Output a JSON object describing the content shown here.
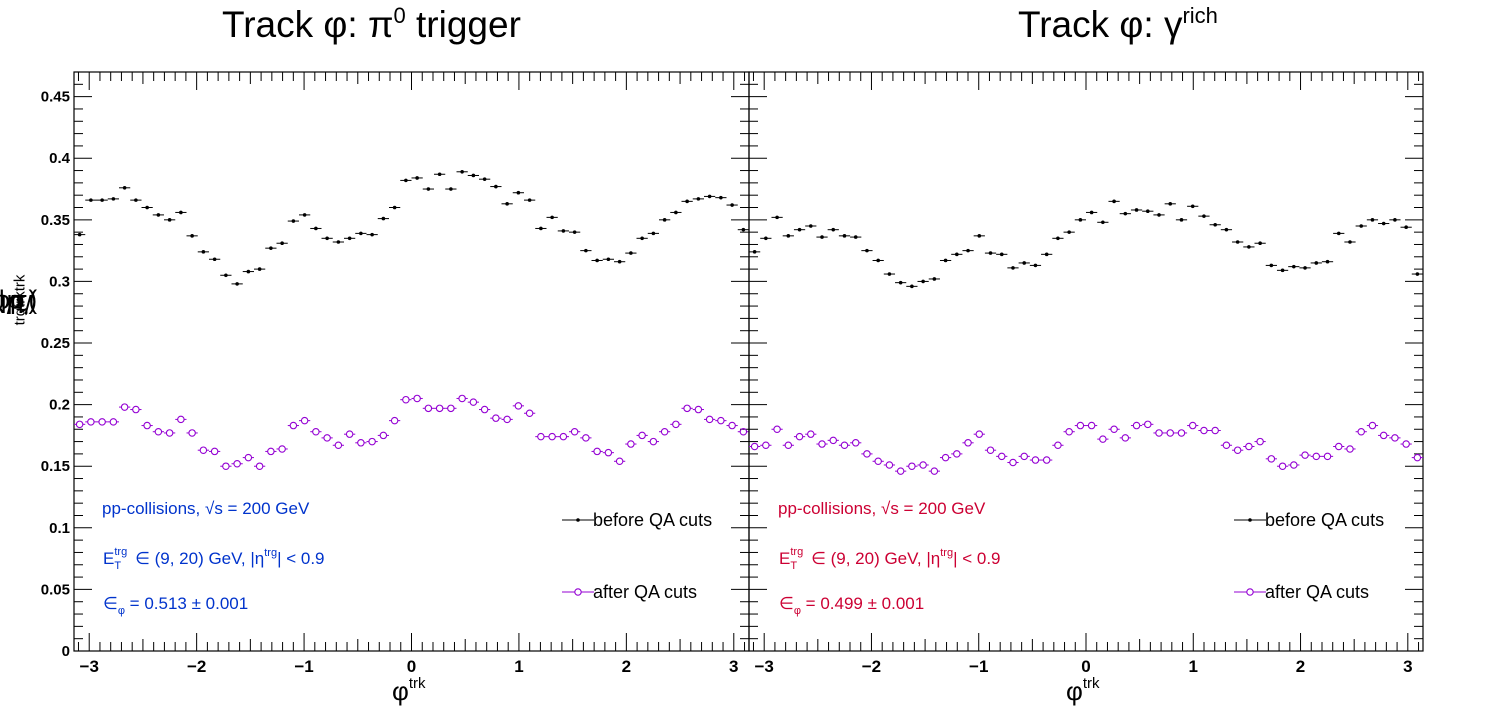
{
  "colors": {
    "before": "#000000",
    "after": "#9400d3",
    "info_left": "#0033cc",
    "info_right": "#cc0033"
  },
  "axes": {
    "ylabel_parts": [
      "(1/N",
      "trg",
      ") dN",
      "trk",
      "/dφ",
      "trk"
    ],
    "xlabel_parts": [
      "φ",
      "trk"
    ],
    "ylim": [
      0,
      0.47
    ],
    "xlim": [
      -3.1416,
      3.1416
    ],
    "yticks": [
      "0",
      "0.05",
      "0.1",
      "0.15",
      "0.2",
      "0.25",
      "0.3",
      "0.35",
      "0.4",
      "0.45"
    ],
    "xticks": [
      "−3",
      "−2",
      "−1",
      "0",
      "1",
      "2",
      "3"
    ]
  },
  "legend": {
    "before": "before QA cuts",
    "after": "after QA cuts"
  },
  "chart_data": [
    {
      "type": "scatter",
      "title_parts": [
        "Track φ: π",
        "0",
        " trigger"
      ],
      "info": {
        "line1_a": "pp-collisions,",
        "line1_b": "√s = 200 GeV",
        "line2_a": "E",
        "line2_sup": "trg",
        "line2_sub": "T",
        "line2_b": " ∈ (9, 20) GeV, |η",
        "line2_sup2": "trg",
        "line2_c": "| < 0.9",
        "line3_a": "∈",
        "line3_sub": "φ",
        "line3_b": " = 0.513 ± 0.001"
      },
      "xlabel": "φtrk",
      "ylim": [
        0,
        0.47
      ],
      "series": [
        {
          "name": "before QA cuts",
          "marker": "dot",
          "y": [
            0.338,
            0.366,
            0.366,
            0.367,
            0.376,
            0.366,
            0.36,
            0.354,
            0.35,
            0.356,
            0.337,
            0.324,
            0.318,
            0.305,
            0.298,
            0.308,
            0.31,
            0.327,
            0.331,
            0.349,
            0.354,
            0.343,
            0.335,
            0.332,
            0.335,
            0.339,
            0.338,
            0.351,
            0.36,
            0.382,
            0.384,
            0.375,
            0.387,
            0.375,
            0.389,
            0.386,
            0.383,
            0.377,
            0.363,
            0.372,
            0.366,
            0.343,
            0.352,
            0.341,
            0.34,
            0.325,
            0.317,
            0.318,
            0.316,
            0.323,
            0.335,
            0.339,
            0.35,
            0.356,
            0.365,
            0.367,
            0.369,
            0.368,
            0.362,
            0.342
          ]
        },
        {
          "name": "after QA cuts",
          "marker": "open-circle",
          "y": [
            0.184,
            0.186,
            0.186,
            0.186,
            0.198,
            0.196,
            0.183,
            0.178,
            0.177,
            0.188,
            0.177,
            0.163,
            0.162,
            0.15,
            0.152,
            0.157,
            0.15,
            0.162,
            0.164,
            0.183,
            0.187,
            0.178,
            0.173,
            0.167,
            0.176,
            0.169,
            0.17,
            0.175,
            0.187,
            0.204,
            0.205,
            0.197,
            0.197,
            0.197,
            0.205,
            0.202,
            0.196,
            0.189,
            0.188,
            0.199,
            0.193,
            0.174,
            0.174,
            0.174,
            0.178,
            0.173,
            0.162,
            0.161,
            0.154,
            0.168,
            0.175,
            0.17,
            0.178,
            0.184,
            0.197,
            0.196,
            0.188,
            0.187,
            0.183,
            0.178
          ]
        }
      ]
    },
    {
      "type": "scatter",
      "title_parts": [
        "Track φ: γ",
        "rich",
        ""
      ],
      "info": {
        "line1_a": "pp-collisions,",
        "line1_b": "√s = 200 GeV",
        "line2_a": "E",
        "line2_sup": "trg",
        "line2_sub": "T",
        "line2_b": " ∈ (9, 20) GeV, |η",
        "line2_sup2": "trg",
        "line2_c": "| < 0.9",
        "line3_a": "∈",
        "line3_sub": "φ",
        "line3_b": " = 0.499 ± 0.001"
      },
      "xlabel": "φtrk",
      "ylim": [
        0,
        0.47
      ],
      "series": [
        {
          "name": "before QA cuts",
          "marker": "dot",
          "y": [
            0.324,
            0.335,
            0.352,
            0.337,
            0.342,
            0.345,
            0.336,
            0.342,
            0.337,
            0.336,
            0.325,
            0.317,
            0.306,
            0.299,
            0.296,
            0.3,
            0.302,
            0.317,
            0.322,
            0.325,
            0.337,
            0.323,
            0.322,
            0.311,
            0.315,
            0.313,
            0.322,
            0.335,
            0.34,
            0.35,
            0.356,
            0.348,
            0.365,
            0.355,
            0.358,
            0.357,
            0.354,
            0.363,
            0.35,
            0.361,
            0.353,
            0.346,
            0.342,
            0.332,
            0.328,
            0.331,
            0.313,
            0.309,
            0.312,
            0.311,
            0.315,
            0.316,
            0.339,
            0.332,
            0.345,
            0.35,
            0.347,
            0.35,
            0.344,
            0.306
          ]
        },
        {
          "name": "after QA cuts",
          "marker": "open-circle",
          "y": [
            0.166,
            0.167,
            0.18,
            0.167,
            0.174,
            0.176,
            0.168,
            0.171,
            0.167,
            0.169,
            0.16,
            0.154,
            0.151,
            0.146,
            0.15,
            0.151,
            0.146,
            0.157,
            0.16,
            0.169,
            0.176,
            0.163,
            0.158,
            0.153,
            0.158,
            0.155,
            0.155,
            0.167,
            0.178,
            0.183,
            0.183,
            0.172,
            0.18,
            0.173,
            0.183,
            0.184,
            0.177,
            0.177,
            0.177,
            0.183,
            0.179,
            0.179,
            0.167,
            0.163,
            0.166,
            0.17,
            0.156,
            0.15,
            0.151,
            0.159,
            0.158,
            0.158,
            0.166,
            0.164,
            0.178,
            0.183,
            0.175,
            0.173,
            0.168,
            0.157
          ]
        }
      ]
    }
  ]
}
